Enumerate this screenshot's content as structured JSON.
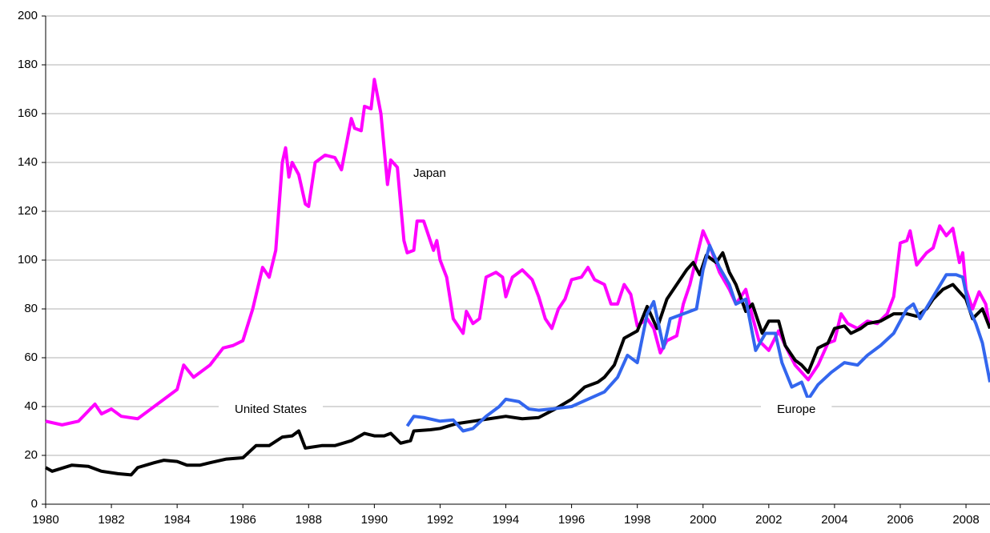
{
  "chart_data": {
    "type": "line",
    "xlim": [
      1980,
      2008.73
    ],
    "xticks": [
      1980,
      1982,
      1984,
      1986,
      1988,
      1990,
      1992,
      1994,
      1996,
      1998,
      2000,
      2002,
      2004,
      2006,
      2008
    ],
    "ylim": [
      0,
      200
    ],
    "yticks": [
      0,
      20,
      40,
      60,
      80,
      100,
      120,
      140,
      160,
      180,
      200
    ],
    "grid": true,
    "annotations": [
      "Japan",
      "United States",
      "Europe"
    ],
    "series": [
      {
        "name": "Japan",
        "color": "#ff00ff",
        "x": [
          1980,
          1980.5,
          1981,
          1981.5,
          1981.7,
          1982,
          1982.3,
          1982.8,
          1983.2,
          1983.6,
          1984,
          1984.2,
          1984.5,
          1985,
          1985.4,
          1985.7,
          1986,
          1986.3,
          1986.6,
          1986.8,
          1987,
          1987.2,
          1987.3,
          1987.4,
          1987.5,
          1987.7,
          1987.9,
          1988,
          1988.2,
          1988.5,
          1988.8,
          1989,
          1989.3,
          1989.4,
          1989.6,
          1989.7,
          1989.9,
          1990,
          1990.2,
          1990.4,
          1990.5,
          1990.7,
          1990.9,
          1991,
          1991.2,
          1991.3,
          1991.5,
          1991.8,
          1991.9,
          1992,
          1992.2,
          1992.4,
          1992.7,
          1992.8,
          1993,
          1993.2,
          1993.4,
          1993.7,
          1993.9,
          1994,
          1994.2,
          1994.5,
          1994.8,
          1995,
          1995.2,
          1995.4,
          1995.6,
          1995.8,
          1996,
          1996.3,
          1996.5,
          1996.7,
          1997,
          1997.2,
          1997.4,
          1997.6,
          1997.8,
          1998,
          1998.3,
          1998.5,
          1998.7,
          1998.9,
          1999.2,
          1999.4,
          1999.6,
          1999.8,
          2000,
          2000.2,
          2000.5,
          2000.8,
          2001,
          2001.3,
          2001.5,
          2001.7,
          2002,
          2002.3,
          2002.5,
          2002.8,
          2003,
          2003.2,
          2003.5,
          2003.8,
          2004,
          2004.2,
          2004.4,
          2004.7,
          2005,
          2005.3,
          2005.6,
          2005.8,
          2006,
          2006.2,
          2006.3,
          2006.5,
          2006.8,
          2007,
          2007.2,
          2007.4,
          2007.6,
          2007.8,
          2007.9,
          2008,
          2008.2,
          2008.4,
          2008.6,
          2008.73
        ],
        "values": [
          34,
          32.5,
          34,
          41,
          37,
          39,
          36,
          35,
          39,
          43,
          47,
          57,
          52,
          57,
          64,
          65,
          67,
          80,
          97,
          93,
          104,
          140,
          146,
          134,
          140,
          135,
          123,
          122,
          140,
          143,
          142,
          137,
          158,
          154,
          153,
          163,
          162,
          174,
          160,
          131,
          141,
          138,
          108,
          103,
          104,
          116,
          116,
          104,
          108,
          100,
          93,
          76,
          70,
          79,
          74,
          76,
          93,
          95,
          93,
          85,
          93,
          96,
          92,
          85,
          76,
          72,
          80,
          84,
          92,
          93,
          97,
          92,
          90,
          82,
          82,
          90,
          86,
          73,
          76,
          72,
          62,
          67,
          69,
          82,
          90,
          101,
          112,
          106,
          95,
          88,
          82,
          88,
          77,
          67,
          63,
          71,
          65,
          57,
          54,
          51,
          57,
          66,
          67,
          78,
          74,
          72,
          75,
          74,
          78,
          85,
          107,
          108,
          112,
          98,
          103,
          105,
          114,
          110,
          113,
          99,
          103,
          88,
          80,
          87,
          82,
          72
        ]
      },
      {
        "name": "United States",
        "color": "#000000",
        "x": [
          1980,
          1980.2,
          1980.8,
          1981.3,
          1981.7,
          1982.2,
          1982.6,
          1982.8,
          1983.3,
          1983.6,
          1984,
          1984.3,
          1984.7,
          1985,
          1985.5,
          1986,
          1986.4,
          1986.8,
          1987.2,
          1987.5,
          1987.7,
          1987.9,
          1988.4,
          1988.8,
          1989.3,
          1989.7,
          1990,
          1990.3,
          1990.5,
          1990.8,
          1991.1,
          1991.2,
          1991.7,
          1992,
          1992.5,
          1993,
          1993.5,
          1994,
          1994.5,
          1995,
          1995.5,
          1996,
          1996.4,
          1996.8,
          1997,
          1997.3,
          1997.6,
          1998,
          1998.3,
          1998.6,
          1998.9,
          1999.2,
          1999.5,
          1999.7,
          1999.9,
          2000.1,
          2000.4,
          2000.6,
          2000.8,
          2001,
          2001.3,
          2001.5,
          2001.8,
          2002,
          2002.3,
          2002.5,
          2002.8,
          2003,
          2003.2,
          2003.5,
          2003.8,
          2004,
          2004.3,
          2004.5,
          2004.8,
          2005,
          2005.4,
          2005.8,
          2006.2,
          2006.5,
          2006.8,
          2007,
          2007.3,
          2007.6,
          2007.8,
          2008,
          2008.2,
          2008.5,
          2008.73
        ],
        "values": [
          15,
          13.5,
          16,
          15.5,
          13.5,
          12.5,
          12,
          15,
          17,
          18,
          17.5,
          16,
          16,
          17,
          18.5,
          19,
          24,
          24,
          27.5,
          28,
          30,
          23,
          24,
          24,
          26,
          29,
          28,
          28,
          29,
          25,
          26,
          30,
          30.5,
          31,
          33,
          34,
          35,
          36,
          35,
          35.5,
          39,
          43,
          48,
          50,
          52,
          57,
          68,
          71,
          81,
          72,
          84,
          90,
          96,
          99,
          94,
          102,
          99,
          103,
          95,
          90,
          79,
          82,
          70,
          75,
          75,
          65,
          59,
          57,
          54,
          64,
          66,
          72,
          73,
          70,
          72,
          74,
          75,
          78,
          78,
          77,
          80,
          84,
          88,
          90,
          87,
          84,
          76,
          80,
          72
        ]
      },
      {
        "name": "Europe",
        "color": "#3366ee",
        "x": [
          1991,
          1991.2,
          1991.5,
          1992,
          1992.4,
          1992.7,
          1993,
          1993.4,
          1993.8,
          1994,
          1994.4,
          1994.7,
          1995,
          1995.4,
          1996,
          1996.5,
          1997,
          1997.4,
          1997.7,
          1998,
          1998.3,
          1998.5,
          1998.8,
          1999,
          1999.4,
          1999.8,
          2000,
          2000.2,
          2000.5,
          2000.8,
          2001,
          2001.3,
          2001.6,
          2001.9,
          2002.2,
          2002.4,
          2002.7,
          2003,
          2003.2,
          2003.5,
          2003.9,
          2004.3,
          2004.7,
          2005,
          2005.4,
          2005.8,
          2006.2,
          2006.4,
          2006.6,
          2007,
          2007.4,
          2007.7,
          2007.9,
          2008.1,
          2008.3,
          2008.5,
          2008.73
        ],
        "values": [
          32,
          36,
          35.5,
          34,
          34.5,
          30,
          31,
          36,
          40,
          43,
          42,
          39,
          38.5,
          39,
          40,
          43,
          46,
          52,
          61,
          58,
          78,
          83,
          64,
          76,
          78,
          80,
          96,
          106,
          97,
          90,
          82,
          84,
          63,
          70,
          70,
          58,
          48,
          50,
          43,
          49,
          54,
          58,
          57,
          61,
          65,
          70,
          80,
          82,
          76,
          85,
          94,
          94,
          93,
          80,
          74,
          66,
          50
        ]
      }
    ]
  }
}
